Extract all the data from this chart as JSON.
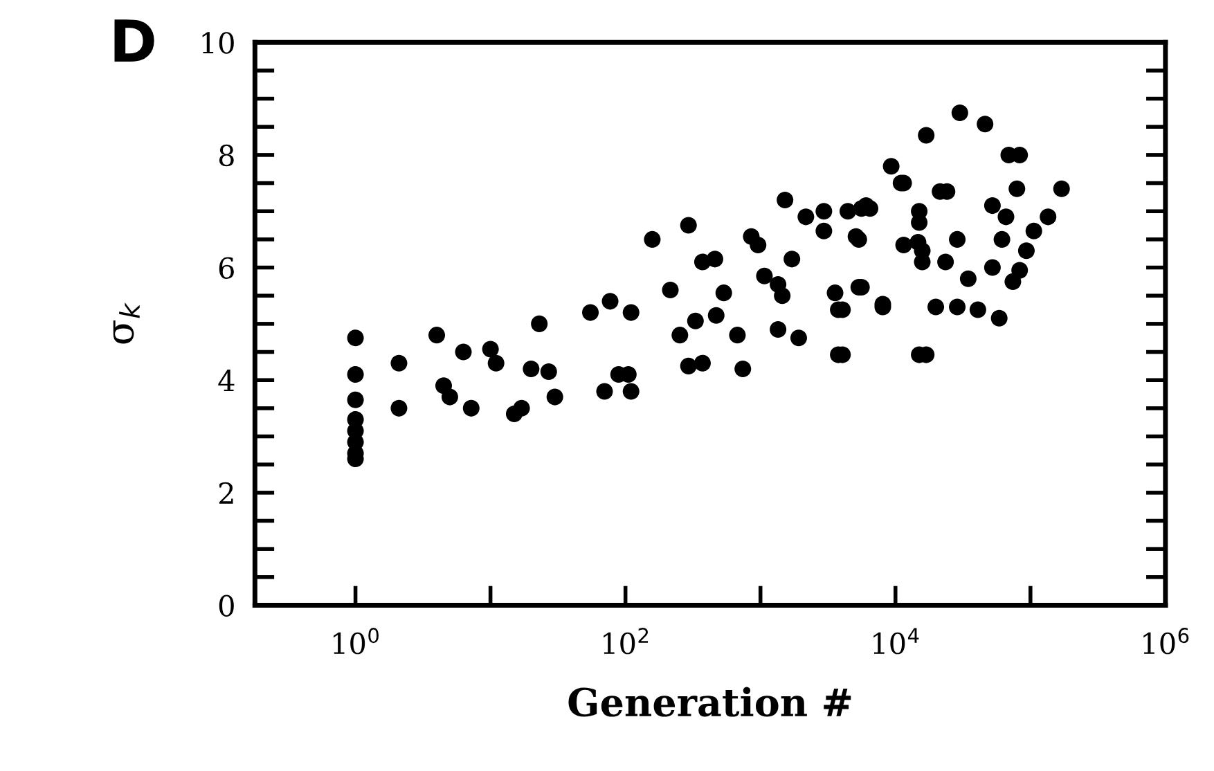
{
  "chart_data": {
    "type": "scatter",
    "title": "D",
    "xlabel": "Generation #",
    "ylabel": "σ$_{k}$",
    "log": "x",
    "marker": "circle",
    "grid": false,
    "xlim": [
      0.18,
      1000000
    ],
    "xticks": [
      {
        "value": 1,
        "label": "10$^{0}$"
      },
      {
        "value": 10,
        "label": null
      },
      {
        "value": 100,
        "label": "10$^{2}$"
      },
      {
        "value": 1000,
        "label": null
      },
      {
        "value": 10000,
        "label": "10$^{4}$"
      },
      {
        "value": 100000,
        "label": null
      },
      {
        "value": 1000000,
        "label": "10$^{6}$"
      }
    ],
    "ylim": [
      0,
      10
    ],
    "yticks": [
      0,
      {
        "value": 0.5,
        "label": null
      },
      {
        "value": 1,
        "label": null
      },
      {
        "value": 1.5,
        "label": null
      },
      2,
      {
        "value": 2.5,
        "label": null
      },
      {
        "value": 3,
        "label": null
      },
      {
        "value": 3.5,
        "label": null
      },
      4,
      {
        "value": 4.5,
        "label": null
      },
      {
        "value": 5,
        "label": null
      },
      {
        "value": 5.5,
        "label": null
      },
      6,
      {
        "value": 6.5,
        "label": null
      },
      {
        "value": 7,
        "label": null
      },
      {
        "value": 7.5,
        "label": null
      },
      8,
      {
        "value": 8.5,
        "label": null
      },
      {
        "value": 9,
        "label": null
      },
      {
        "value": 9.5,
        "label": null
      },
      10
    ],
    "series": [
      {
        "color": "#000000",
        "x": [
          1,
          1,
          1,
          1,
          1,
          1,
          1,
          1,
          2.1,
          2.1,
          4,
          6.3,
          10,
          11,
          4.5,
          5,
          7.2,
          20,
          27,
          30,
          23,
          17,
          15,
          70,
          105,
          110,
          55,
          110,
          158,
          293,
          855,
          960,
          372,
          460,
          1710,
          1070,
          1350,
          215,
          535,
          1450,
          3570,
          5350,
          8060,
          3770,
          28700,
          77,
          470,
          330,
          253,
          675,
          1350,
          1920,
          3770,
          16900,
          293,
          372,
          740,
          89,
          1520,
          2170,
          2950,
          5600,
          6480,
          2950,
          5100,
          11500,
          15800,
          14700,
          21400,
          30000,
          46100,
          16900,
          69100,
          83200,
          9300,
          11000,
          24100,
          79400,
          170000,
          6060,
          4440,
          15000,
          15000,
          52300,
          65900,
          135000,
          106000,
          5350,
          11500,
          15800,
          28700,
          61500,
          93300,
          23500,
          52300,
          83200,
          34600,
          74100,
          5600,
          4050,
          8060,
          19900,
          40800,
          58700,
          15000,
          4050
        ],
        "values": [
          4.75,
          4.1,
          3.65,
          3.3,
          3.1,
          2.9,
          2.7,
          2.6,
          4.3,
          3.5,
          4.8,
          4.5,
          4.55,
          4.3,
          3.9,
          3.7,
          3.5,
          4.2,
          4.15,
          3.7,
          5.0,
          3.5,
          3.4,
          3.8,
          4.1,
          3.8,
          5.2,
          5.2,
          6.5,
          6.75,
          6.55,
          6.4,
          6.1,
          6.15,
          6.15,
          5.85,
          5.7,
          5.6,
          5.55,
          5.5,
          5.55,
          5.65,
          5.35,
          5.25,
          5.3,
          5.4,
          5.15,
          5.05,
          4.8,
          4.8,
          4.9,
          4.75,
          4.45,
          4.45,
          4.25,
          4.3,
          4.2,
          4.1,
          7.2,
          6.9,
          6.65,
          7.05,
          7.05,
          7.0,
          6.55,
          7.5,
          6.1,
          6.45,
          7.35,
          8.75,
          8.55,
          8.35,
          8.0,
          8.0,
          7.8,
          7.5,
          7.35,
          7.4,
          7.4,
          7.1,
          7.0,
          7.0,
          6.8,
          7.1,
          6.9,
          6.9,
          6.65,
          6.5,
          6.4,
          6.3,
          6.5,
          6.5,
          6.3,
          6.1,
          6.0,
          5.95,
          5.8,
          5.75,
          5.65,
          5.25,
          5.3,
          5.3,
          5.25,
          5.1,
          4.45,
          4.45
        ]
      }
    ]
  }
}
